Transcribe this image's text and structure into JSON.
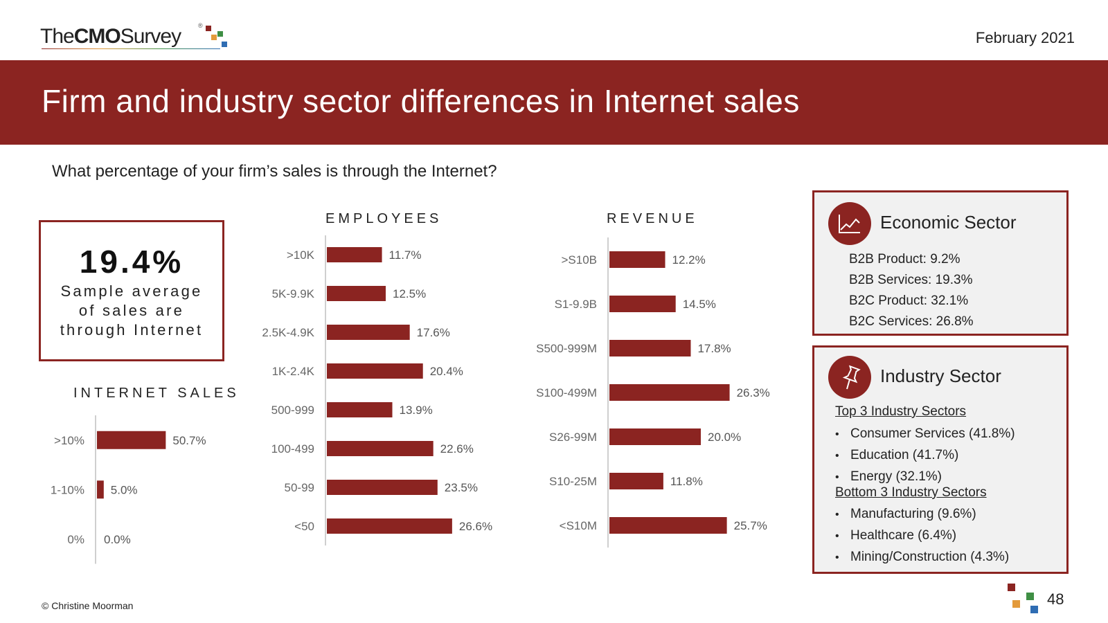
{
  "header": {
    "logo_the": "The",
    "logo_cmo": "CMO",
    "logo_survey": "Survey",
    "logo_registered": "®",
    "date": "February 2021",
    "title": "Firm and industry sector differences in Internet sales"
  },
  "question": "What percentage of your firm’s sales is through the Internet?",
  "sample_average": {
    "value": "19.4%",
    "label_lines": [
      "Sample average",
      "of sales are",
      "through Internet"
    ]
  },
  "sections": {
    "internet_sales": "INTERNET SALES",
    "employees": "EMPLOYEES",
    "revenue": "REVENUE"
  },
  "colors": {
    "bar": "#8b2421",
    "accent": "#8b2421",
    "axis": "#cfcfcf",
    "logo_squares": [
      "#8b2421",
      "#e39a3b",
      "#3f8f45",
      "#2f6db3"
    ]
  },
  "chart_data": [
    {
      "type": "bar",
      "orientation": "horizontal",
      "title": "INTERNET SALES",
      "categories": [
        ">10%",
        "1-10%",
        "0%"
      ],
      "values": [
        50.7,
        5.0,
        0.0
      ],
      "value_labels": [
        "50.7%",
        "5.0%",
        "0.0%"
      ]
    },
    {
      "type": "bar",
      "orientation": "horizontal",
      "title": "EMPLOYEES",
      "categories": [
        ">10K",
        "5K-9.9K",
        "2.5K-4.9K",
        "1K-2.4K",
        "500-999",
        "100-499",
        "50-99",
        "<50"
      ],
      "values": [
        11.7,
        12.5,
        17.6,
        20.4,
        13.9,
        22.6,
        23.5,
        26.6
      ],
      "value_labels": [
        "11.7%",
        "12.5%",
        "17.6%",
        "20.4%",
        "13.9%",
        "22.6%",
        "23.5%",
        "26.6%"
      ]
    },
    {
      "type": "bar",
      "orientation": "horizontal",
      "title": "REVENUE",
      "categories": [
        ">S10B",
        "S1-9.9B",
        "S500-999M",
        "S100-499M",
        "S26-99M",
        "S10-25M",
        "<S10M"
      ],
      "values": [
        12.2,
        14.5,
        17.8,
        26.3,
        20.0,
        11.8,
        25.7
      ],
      "value_labels": [
        "12.2%",
        "14.5%",
        "17.8%",
        "26.3%",
        "20.0%",
        "11.8%",
        "25.7%"
      ]
    }
  ],
  "economic_sector": {
    "title": "Economic Sector",
    "icon": "line-chart-icon",
    "items": [
      "B2B Product: 9.2%",
      "B2B Services: 19.3%",
      "B2C Product: 32.1%",
      "B2C Services: 26.8%"
    ]
  },
  "industry_sector": {
    "title": "Industry Sector",
    "icon": "pushpin-icon",
    "top_heading": "Top 3 Industry Sectors",
    "top_items": [
      "Consumer Services (41.8%)",
      "Education (41.7%)",
      "Energy (32.1%)"
    ],
    "bottom_heading": "Bottom 3 Industry Sectors",
    "bottom_items": [
      "Manufacturing (9.6%)",
      "Healthcare (6.4%)",
      "Mining/Construction (4.3%)"
    ]
  },
  "footer": {
    "copyright": "© Christine Moorman",
    "page_number": "48"
  }
}
